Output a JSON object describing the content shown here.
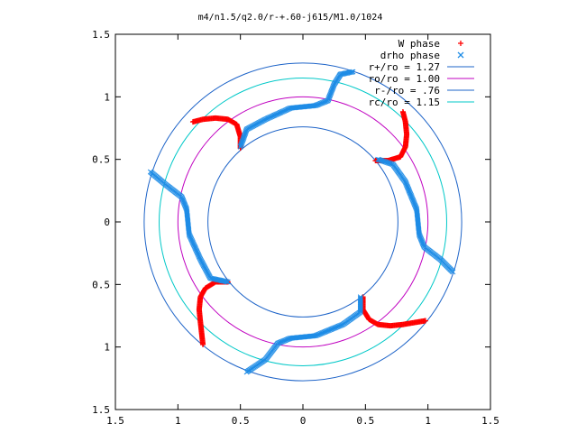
{
  "chart_data": {
    "type": "scatter",
    "title": "m4/n1.5/q2.0/r-+.60-j615/M1.0/1024",
    "xlim": [
      -1.5,
      1.5
    ],
    "ylim": [
      -1.5,
      1.5
    ],
    "xticks": [
      -1.5,
      -1,
      -0.5,
      0,
      0.5,
      1,
      1.5
    ],
    "yticks": [
      -1.5,
      -1,
      -0.5,
      0,
      0.5,
      1,
      1.5
    ],
    "xtick_labels": [
      "1.5",
      "1",
      "0.5",
      "0",
      "0.5",
      "1",
      "1.5"
    ],
    "ytick_labels": [
      "1.5",
      "1",
      "0.5",
      "0",
      "0.5",
      "1",
      "1.5"
    ],
    "grid": false,
    "legend_position": "top-right",
    "circles": [
      {
        "name": "r+/ro = 1.27",
        "radius": 1.27,
        "color": "#1e64c8"
      },
      {
        "name": "ro/ro = 1.00",
        "radius": 1.0,
        "color": "#c000c0"
      },
      {
        "name": "r-/ro = .76",
        "radius": 0.76,
        "color": "#1e64c8"
      },
      {
        "name": "rc/ro = 1.15",
        "radius": 1.15,
        "color": "#00c8c8"
      }
    ],
    "series": [
      {
        "name": "W phase",
        "marker": "+",
        "color": "#ff0000",
        "arms": [
          [
            [
              -0.5,
              0.59
            ],
            [
              -0.5,
              0.68
            ],
            [
              -0.53,
              0.78
            ],
            [
              -0.6,
              0.82
            ],
            [
              -0.7,
              0.83
            ],
            [
              -0.8,
              0.82
            ],
            [
              -0.88,
              0.8
            ]
          ],
          [
            [
              0.58,
              0.49
            ],
            [
              0.68,
              0.49
            ],
            [
              0.78,
              0.52
            ],
            [
              0.82,
              0.6
            ],
            [
              0.83,
              0.7
            ],
            [
              0.82,
              0.8
            ],
            [
              0.8,
              0.88
            ]
          ],
          [
            [
              0.48,
              -0.6
            ],
            [
              0.48,
              -0.7
            ],
            [
              0.53,
              -0.78
            ],
            [
              0.6,
              -0.82
            ],
            [
              0.7,
              -0.83
            ],
            [
              0.8,
              -0.82
            ],
            [
              0.98,
              -0.79
            ]
          ],
          [
            [
              -0.6,
              -0.48
            ],
            [
              -0.7,
              -0.48
            ],
            [
              -0.78,
              -0.53
            ],
            [
              -0.82,
              -0.6
            ],
            [
              -0.83,
              -0.7
            ],
            [
              -0.82,
              -0.8
            ],
            [
              -0.8,
              -0.98
            ]
          ]
        ]
      },
      {
        "name": "drho phase",
        "marker": "x",
        "color": "#1e8ce6",
        "arms": [
          [
            [
              -0.5,
              0.6
            ],
            [
              -0.45,
              0.74
            ],
            [
              -0.3,
              0.82
            ],
            [
              -0.1,
              0.91
            ],
            [
              0.1,
              0.93
            ],
            [
              0.2,
              0.97
            ],
            [
              0.25,
              1.1
            ],
            [
              0.3,
              1.18
            ],
            [
              0.4,
              1.2
            ]
          ],
          [
            [
              0.6,
              0.5
            ],
            [
              0.72,
              0.46
            ],
            [
              0.82,
              0.32
            ],
            [
              0.91,
              0.1
            ],
            [
              0.93,
              -0.1
            ],
            [
              0.97,
              -0.2
            ],
            [
              1.1,
              -0.3
            ],
            [
              1.2,
              -0.4
            ]
          ],
          [
            [
              0.46,
              -0.6
            ],
            [
              0.46,
              -0.72
            ],
            [
              0.32,
              -0.82
            ],
            [
              0.1,
              -0.91
            ],
            [
              -0.1,
              -0.93
            ],
            [
              -0.2,
              -0.97
            ],
            [
              -0.3,
              -1.1
            ],
            [
              -0.45,
              -1.2
            ]
          ],
          [
            [
              -0.6,
              -0.48
            ],
            [
              -0.74,
              -0.45
            ],
            [
              -0.82,
              -0.3
            ],
            [
              -0.91,
              -0.1
            ],
            [
              -0.93,
              0.1
            ],
            [
              -0.97,
              0.2
            ],
            [
              -1.1,
              0.3
            ],
            [
              -1.22,
              0.4
            ]
          ]
        ]
      }
    ]
  }
}
